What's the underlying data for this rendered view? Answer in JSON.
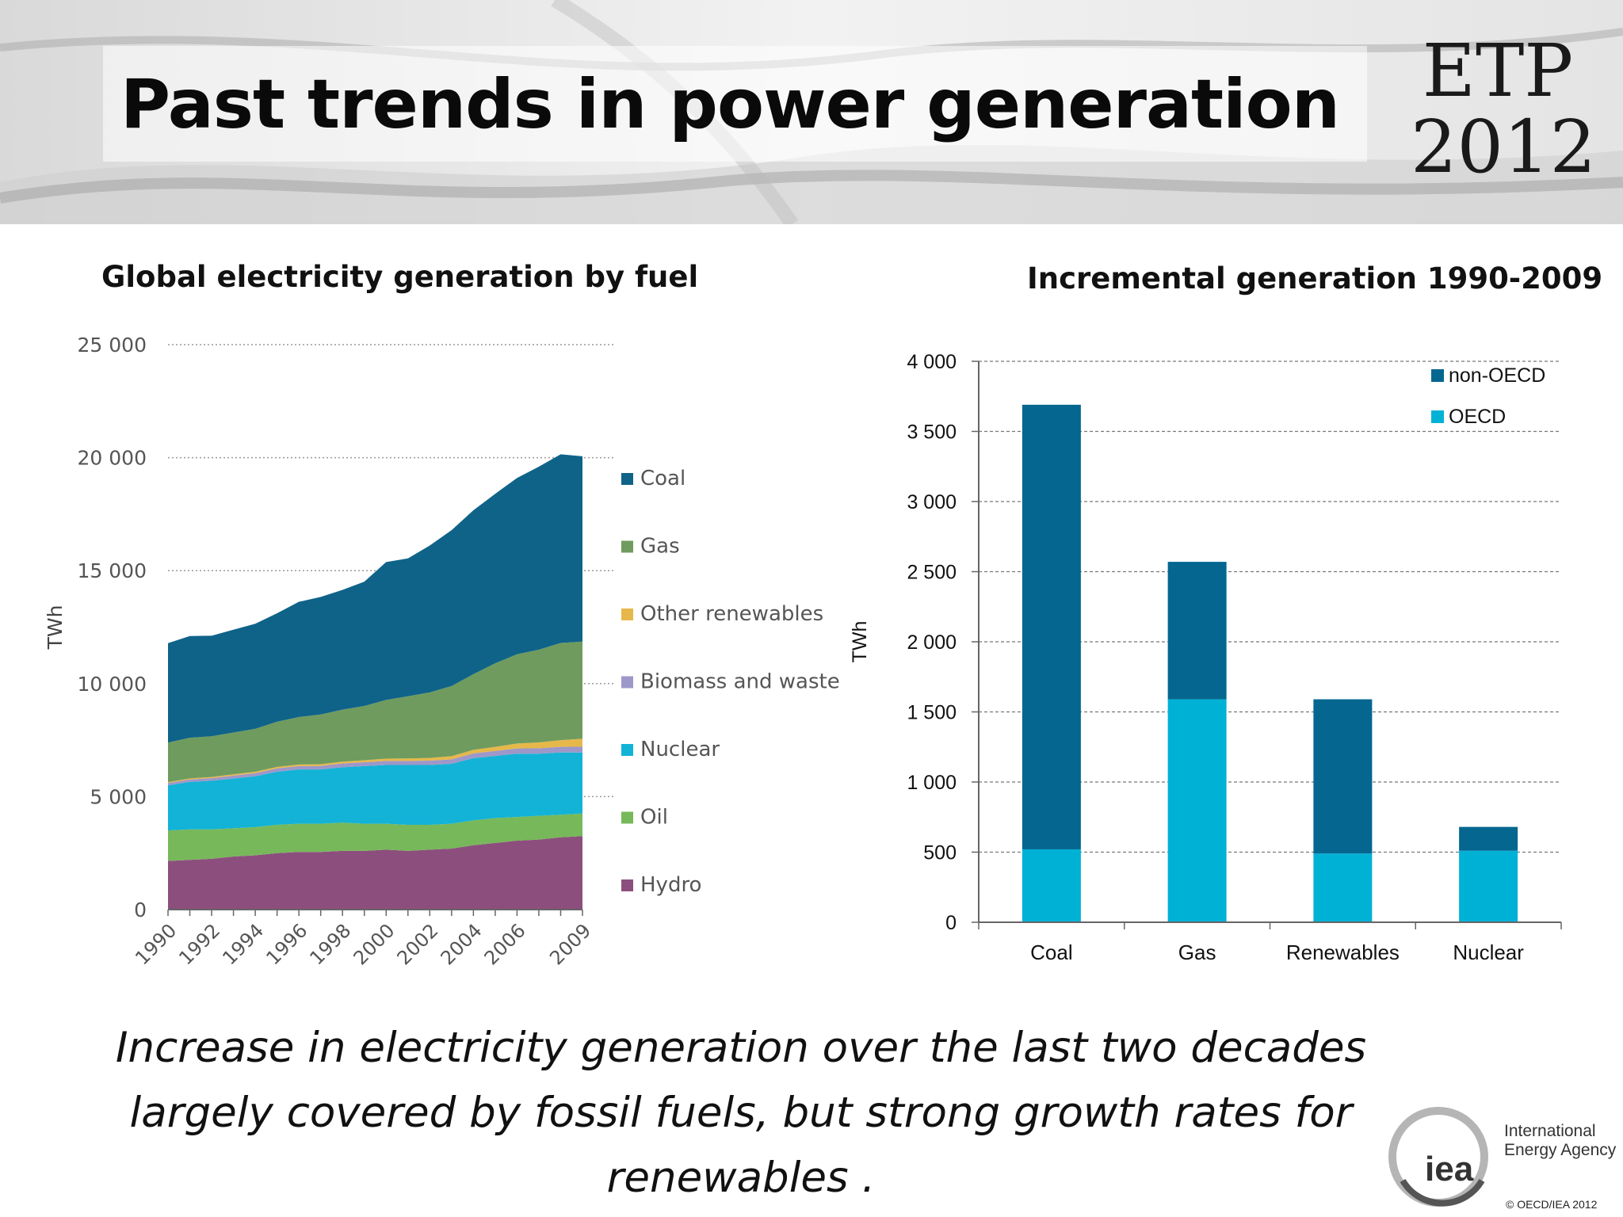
{
  "header": {
    "title": "Past trends in power generation",
    "logo_line1": "ETP",
    "logo_line2": "2012"
  },
  "chart_data": [
    {
      "type": "area",
      "stacked": true,
      "title": "Global electricity generation by fuel",
      "ylabel": "TWh",
      "ylim": [
        0,
        25000
      ],
      "yticks": [
        0,
        5000,
        10000,
        15000,
        20000,
        25000
      ],
      "ytick_labels": [
        "0",
        "5 000",
        "10 000",
        "15 000",
        "20 000",
        "25 000"
      ],
      "x": [
        1990,
        1991,
        1992,
        1993,
        1994,
        1995,
        1996,
        1997,
        1998,
        1999,
        2000,
        2001,
        2002,
        2003,
        2004,
        2005,
        2006,
        2007,
        2008,
        2009
      ],
      "xtick_labels": [
        "1990",
        "1992",
        "1994",
        "1996",
        "1998",
        "2000",
        "2002",
        "2004",
        "2006",
        "2009"
      ],
      "grid": true,
      "legend_position": "right",
      "series": [
        {
          "name": "Hydro",
          "color": "#8c4f7d",
          "values": [
            2150,
            2200,
            2250,
            2350,
            2400,
            2500,
            2550,
            2550,
            2600,
            2600,
            2650,
            2600,
            2650,
            2700,
            2850,
            2950,
            3050,
            3100,
            3200,
            3250
          ]
        },
        {
          "name": "Oil",
          "color": "#77b85a",
          "values": [
            1350,
            1350,
            1300,
            1250,
            1250,
            1250,
            1250,
            1250,
            1250,
            1200,
            1150,
            1150,
            1100,
            1100,
            1100,
            1100,
            1050,
            1050,
            1000,
            1000
          ]
        },
        {
          "name": "Nuclear",
          "color": "#12b3d6",
          "values": [
            2000,
            2100,
            2150,
            2200,
            2250,
            2350,
            2400,
            2400,
            2450,
            2550,
            2600,
            2650,
            2650,
            2650,
            2750,
            2750,
            2800,
            2750,
            2750,
            2700
          ]
        },
        {
          "name": "Biomass and waste",
          "color": "#9e97c9",
          "values": [
            100,
            110,
            120,
            130,
            140,
            150,
            150,
            160,
            170,
            170,
            180,
            180,
            190,
            200,
            210,
            220,
            230,
            240,
            250,
            260
          ]
        },
        {
          "name": "Other renewables",
          "color": "#e6b84a",
          "values": [
            40,
            45,
            50,
            55,
            60,
            65,
            70,
            75,
            80,
            90,
            100,
            110,
            120,
            140,
            160,
            180,
            220,
            260,
            300,
            350
          ]
        },
        {
          "name": "Gas",
          "color": "#6f9b5e",
          "values": [
            1750,
            1800,
            1800,
            1850,
            1900,
            2000,
            2100,
            2200,
            2300,
            2400,
            2600,
            2750,
            2900,
            3100,
            3350,
            3700,
            3950,
            4100,
            4300,
            4300
          ]
        },
        {
          "name": "Coal",
          "color": "#0f6389",
          "values": [
            4400,
            4500,
            4450,
            4550,
            4650,
            4800,
            5100,
            5200,
            5300,
            5500,
            6100,
            6100,
            6500,
            6900,
            7250,
            7500,
            7800,
            8100,
            8350,
            8200
          ]
        }
      ]
    },
    {
      "type": "bar",
      "stacked": true,
      "title": "Incremental generation 1990-2009",
      "ylabel": "TWh",
      "ylim": [
        0,
        4000
      ],
      "yticks": [
        0,
        500,
        1000,
        1500,
        2000,
        2500,
        3000,
        3500,
        4000
      ],
      "ytick_labels": [
        "0",
        "500",
        "1 000",
        "1 500",
        "2 000",
        "2 500",
        "3 000",
        "3 500",
        "4 000"
      ],
      "categories": [
        "Coal",
        "Gas",
        "Renewables",
        "Nuclear"
      ],
      "grid": true,
      "legend_position": "top-right",
      "series": [
        {
          "name": "OECD",
          "color": "#00b1d6",
          "values": [
            520,
            1590,
            490,
            510
          ]
        },
        {
          "name": "non-OECD",
          "color": "#056690",
          "values": [
            3170,
            980,
            1100,
            170
          ]
        }
      ]
    }
  ],
  "caption": {
    "line1": "Increase in electricity generation over the last two decades",
    "line2": "largely covered by fossil fuels, but strong growth rates for",
    "line3": "renewables ."
  },
  "footer": {
    "iea_logo_text": "iea",
    "iea_name_line1": "International",
    "iea_name_line2": "Energy Agency",
    "copyright": "© OECD/IEA 2012"
  }
}
